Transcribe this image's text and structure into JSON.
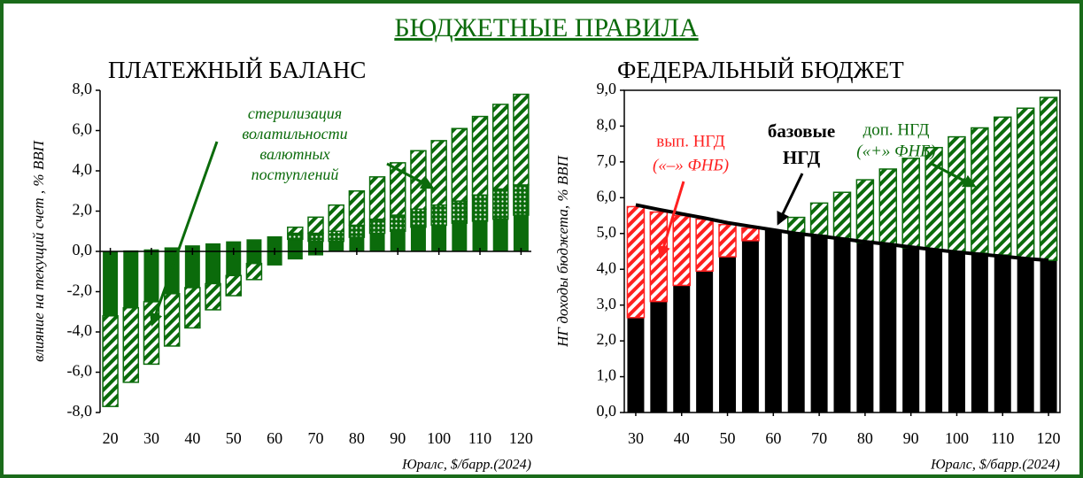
{
  "title": "БЮДЖЕТНЫЕ ПРАВИЛА",
  "chart_data": [
    {
      "type": "bar",
      "title": "ПЛАТЕЖНЫЙ БАЛАНС",
      "y_label": "влияние на текущий счет , % ВВП",
      "x_label": "Юралс, $/барр.(2024)",
      "x": [
        20,
        25,
        30,
        35,
        40,
        45,
        50,
        55,
        60,
        65,
        70,
        75,
        80,
        85,
        90,
        95,
        100,
        105,
        110,
        115,
        120
      ],
      "xlim": [
        17.5,
        122.5
      ],
      "xticks": [
        20,
        30,
        40,
        50,
        60,
        70,
        80,
        90,
        100,
        110,
        120
      ],
      "ylim": [
        -8,
        8
      ],
      "yticks": [
        {
          "value": -8,
          "label": "-8,0"
        },
        {
          "value": -6,
          "label": "-6,0"
        },
        {
          "value": -4,
          "label": "-4,0"
        },
        {
          "value": -2,
          "label": "-2,0"
        },
        {
          "value": 0,
          "label": "0,0"
        },
        {
          "value": 2,
          "label": "2,0"
        },
        {
          "value": 4,
          "label": "4,0"
        },
        {
          "value": 6,
          "label": "6,0"
        },
        {
          "value": 8,
          "label": "8,0"
        }
      ],
      "stacked": true,
      "series": [
        {
          "color": "#0b6b0b",
          "pattern": "solid",
          "values": [
            null,
            0.05,
            0.1,
            0.2,
            0.3,
            0.4,
            0.5,
            0.6,
            0.75,
            0.6,
            0.5,
            0.5,
            0.7,
            0.9,
            1.0,
            1.2,
            1.3,
            1.4,
            1.5,
            1.6,
            1.8
          ]
        },
        {
          "color": "#0b6b0b",
          "pattern": "dots",
          "values": [
            null,
            null,
            null,
            null,
            null,
            null,
            null,
            null,
            null,
            0.3,
            0.4,
            0.5,
            0.6,
            0.7,
            0.8,
            0.9,
            1.0,
            1.1,
            1.3,
            1.5,
            1.5
          ]
        },
        {
          "color": "#0b6b0b",
          "pattern": "hatch",
          "values": [
            null,
            null,
            null,
            null,
            null,
            null,
            null,
            null,
            null,
            0.3,
            0.8,
            1.3,
            1.7,
            2.1,
            2.6,
            2.9,
            3.2,
            3.6,
            3.9,
            4.2,
            4.5
          ]
        },
        {
          "color": "#0b6b0b",
          "pattern": "solid",
          "values": [
            -3.2,
            -2.8,
            -2.5,
            -2.1,
            -1.8,
            -1.6,
            -1.2,
            -0.6,
            -0.7,
            -0.4,
            -0.2,
            null,
            null,
            null,
            null,
            null,
            null,
            null,
            null,
            null,
            null
          ]
        },
        {
          "color": "#0b6b0b",
          "pattern": "hatch",
          "values": [
            -4.5,
            -3.7,
            -3.1,
            -2.6,
            -2.0,
            -1.3,
            -1.0,
            -0.8,
            null,
            null,
            null,
            null,
            null,
            null,
            null,
            null,
            null,
            null,
            null,
            null,
            null
          ]
        }
      ],
      "annotations": [
        {
          "color": "#0b6b0b",
          "lines": [
            "стерилизация",
            "волатильности",
            "валютных",
            "поступлений"
          ]
        }
      ]
    },
    {
      "type": "bar",
      "title": "ФЕДЕРАЛЬНЫЙ БЮДЖЕТ",
      "y_label": "НГ доходы бюджета, % ВВП",
      "x_label": "Юралс, $/барр.(2024)",
      "x": [
        30,
        35,
        40,
        45,
        50,
        55,
        60,
        65,
        70,
        75,
        80,
        85,
        90,
        95,
        100,
        105,
        110,
        115,
        120
      ],
      "xlim": [
        27.5,
        122.5
      ],
      "xticks": [
        30,
        40,
        50,
        60,
        70,
        80,
        90,
        100,
        110,
        120
      ],
      "ylim": [
        0,
        9
      ],
      "yticks": [
        {
          "value": 0,
          "label": "0,0"
        },
        {
          "value": 1,
          "label": "1,0"
        },
        {
          "value": 2,
          "label": "2,0"
        },
        {
          "value": 3,
          "label": "3,0"
        },
        {
          "value": 4,
          "label": "4,0"
        },
        {
          "value": 5,
          "label": "5,0"
        },
        {
          "value": 6,
          "label": "6,0"
        },
        {
          "value": 7,
          "label": "7,0"
        },
        {
          "value": 8,
          "label": "8,0"
        },
        {
          "value": 9,
          "label": "9,0"
        }
      ],
      "stacked": true,
      "series": [
        {
          "color": "#000000",
          "pattern": "solid",
          "values": [
            2.65,
            3.1,
            3.55,
            3.95,
            4.35,
            4.8,
            5.1,
            5.0,
            4.95,
            4.85,
            4.75,
            4.7,
            4.6,
            4.55,
            4.5,
            4.45,
            4.4,
            4.3,
            4.25
          ]
        },
        {
          "color": "#ff2020",
          "pattern": "hatch",
          "values": [
            3.1,
            2.5,
            1.95,
            1.45,
            0.9,
            0.35,
            null,
            null,
            null,
            null,
            null,
            null,
            null,
            null,
            null,
            null,
            null,
            null,
            null
          ]
        },
        {
          "color": "#0b6b0b",
          "pattern": "hatch",
          "values": [
            null,
            null,
            null,
            null,
            null,
            null,
            null,
            0.45,
            0.9,
            1.3,
            1.75,
            2.1,
            2.5,
            2.85,
            3.2,
            3.5,
            3.85,
            4.2,
            4.55
          ]
        },
        {
          "type": "line",
          "color": "#000000",
          "values": [
            5.8,
            5.67,
            5.55,
            5.43,
            5.3,
            5.2,
            5.1,
            5.0,
            4.93,
            4.85,
            4.77,
            4.7,
            4.62,
            4.55,
            4.48,
            4.42,
            4.36,
            4.3,
            4.25
          ]
        }
      ],
      "annotations": [
        {
          "color": "#ff2020",
          "lines": [
            "вып. НГД",
            "(«–» ФНБ)"
          ]
        },
        {
          "color": "#000000",
          "lines": [
            "базовые",
            "НГД"
          ]
        },
        {
          "color": "#0b6b0b",
          "lines": [
            "доп. НГД",
            "(«+» ФНБ)"
          ]
        }
      ]
    }
  ]
}
